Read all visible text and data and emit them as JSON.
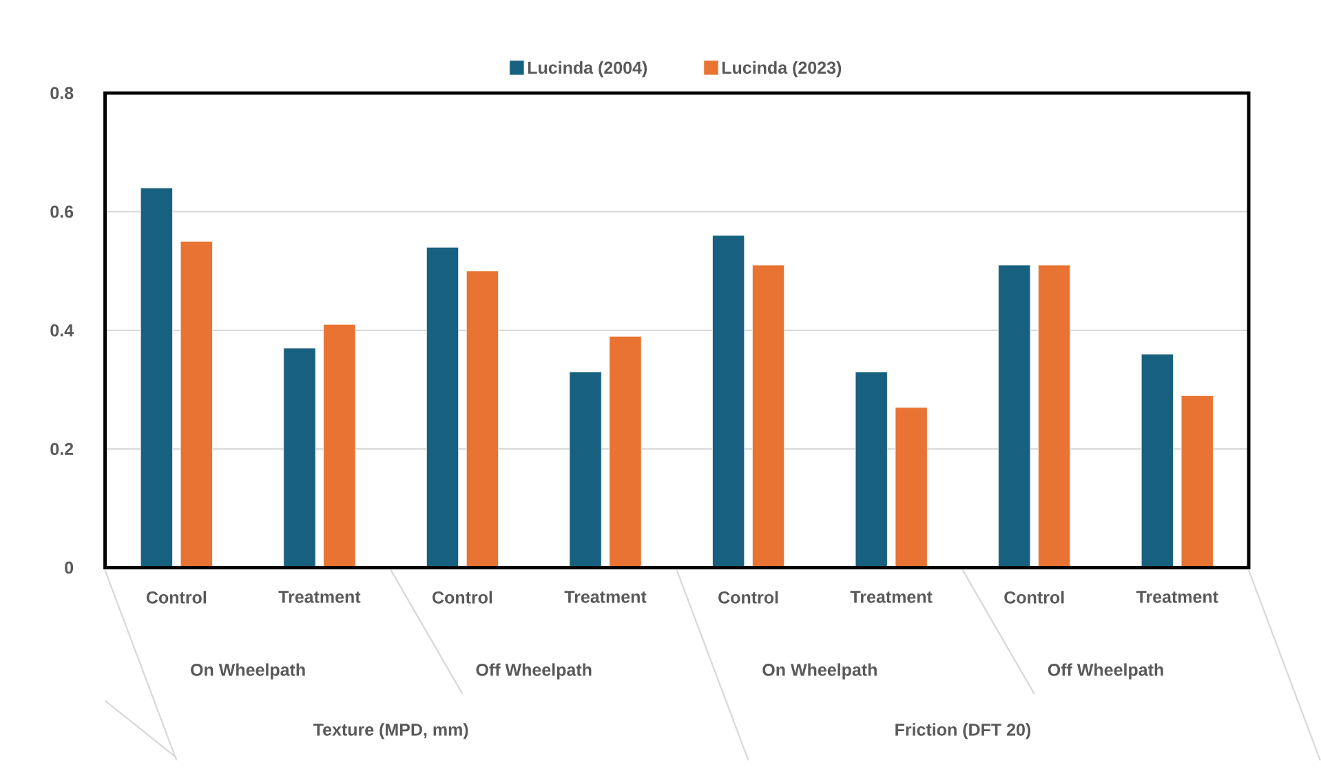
{
  "chart_data": {
    "type": "bar",
    "categories": [
      "Control",
      "Treatment",
      "Control",
      "Treatment",
      "Control",
      "Treatment",
      "Control",
      "Treatment"
    ],
    "series": [
      {
        "name": "Lucinda (2004)",
        "color": "#17607f",
        "values": [
          0.64,
          0.37,
          0.54,
          0.33,
          0.56,
          0.33,
          0.51,
          0.36
        ]
      },
      {
        "name": "Lucinda (2023)",
        "color": "#e87332",
        "values": [
          0.55,
          0.41,
          0.5,
          0.39,
          0.51,
          0.27,
          0.51,
          0.29
        ]
      }
    ],
    "ylim": [
      0,
      0.8
    ],
    "yticks": [
      0,
      0.2,
      0.4,
      0.6,
      0.8
    ],
    "grid": "y",
    "legend": "top",
    "annotations": [
      "On Wheelpath",
      "Off Wheelpath",
      "On Wheelpath",
      "Off Wheelpath",
      "Texture (MPD, mm)",
      "Friction (DFT 20)"
    ]
  }
}
